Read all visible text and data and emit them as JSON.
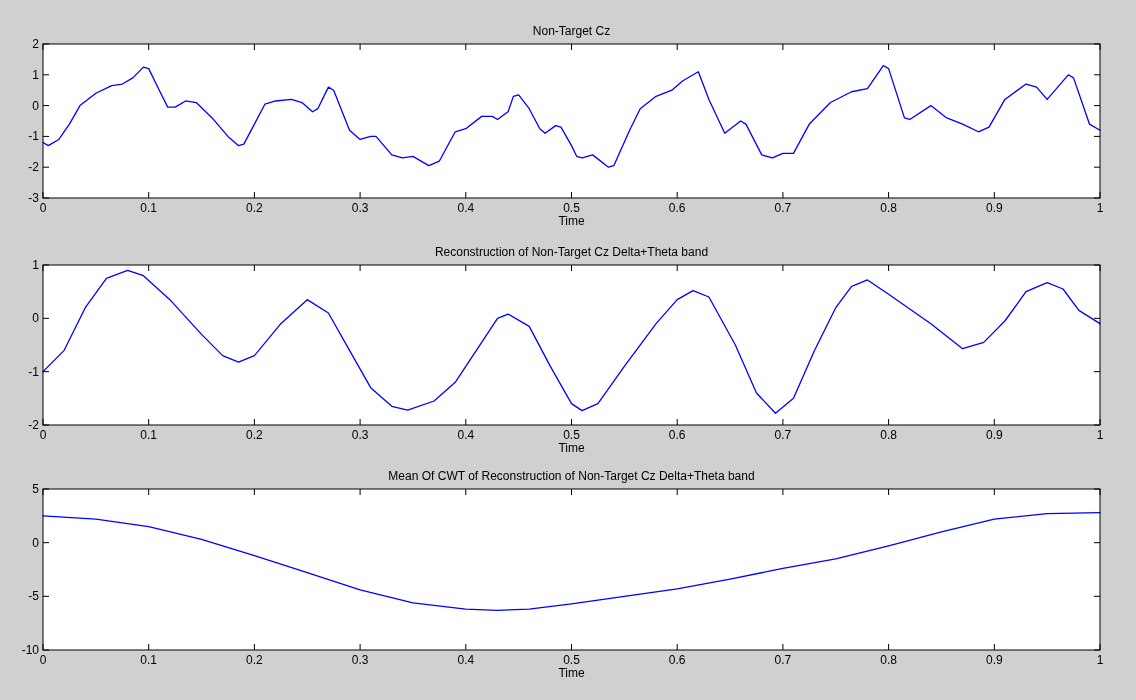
{
  "chart_data": [
    {
      "type": "line",
      "title": "Non-Target Cz",
      "xlabel": "Time",
      "xlim": [
        0,
        1
      ],
      "xticks": [
        0,
        0.1,
        0.2,
        0.3,
        0.4,
        0.5,
        0.6,
        0.7,
        0.8,
        0.9,
        1
      ],
      "ylim": [
        -3,
        2
      ],
      "yticks": [
        -3,
        -2,
        -1,
        0,
        1,
        2
      ],
      "grid": false,
      "series": [
        {
          "color": "#0000ff",
          "x": [
            0,
            0.005,
            0.015,
            0.025,
            0.035,
            0.05,
            0.065,
            0.075,
            0.085,
            0.095,
            0.1,
            0.11,
            0.118,
            0.125,
            0.135,
            0.145,
            0.16,
            0.175,
            0.185,
            0.19,
            0.2,
            0.21,
            0.22,
            0.235,
            0.245,
            0.255,
            0.26,
            0.27,
            0.275,
            0.29,
            0.3,
            0.31,
            0.315,
            0.33,
            0.34,
            0.35,
            0.365,
            0.375,
            0.39,
            0.4,
            0.415,
            0.425,
            0.43,
            0.44,
            0.445,
            0.45,
            0.46,
            0.47,
            0.475,
            0.485,
            0.49,
            0.5,
            0.505,
            0.51,
            0.52,
            0.535,
            0.54,
            0.555,
            0.565,
            0.58,
            0.595,
            0.605,
            0.62,
            0.63,
            0.645,
            0.66,
            0.665,
            0.68,
            0.69,
            0.7,
            0.71,
            0.725,
            0.745,
            0.765,
            0.78,
            0.795,
            0.8,
            0.815,
            0.82,
            0.84,
            0.855,
            0.87,
            0.885,
            0.895,
            0.91,
            0.93,
            0.94,
            0.95,
            0.96,
            0.97,
            0.975,
            0.99,
            1
          ],
          "values": [
            -1.2,
            -1.3,
            -1.1,
            -0.6,
            0.0,
            0.4,
            0.65,
            0.7,
            0.9,
            1.25,
            1.2,
            0.5,
            -0.05,
            -0.05,
            0.15,
            0.1,
            -0.4,
            -1.0,
            -1.3,
            -1.25,
            -0.6,
            0.05,
            0.15,
            0.2,
            0.1,
            -0.2,
            -0.1,
            0.6,
            0.5,
            -0.8,
            -1.1,
            -1.0,
            -1.0,
            -1.6,
            -1.7,
            -1.65,
            -1.95,
            -1.8,
            -0.85,
            -0.75,
            -0.35,
            -0.35,
            -0.45,
            -0.2,
            0.3,
            0.35,
            -0.1,
            -0.75,
            -0.9,
            -0.65,
            -0.7,
            -1.3,
            -1.65,
            -1.7,
            -1.6,
            -2.0,
            -1.95,
            -0.8,
            -0.1,
            0.3,
            0.5,
            0.8,
            1.1,
            0.2,
            -0.9,
            -0.5,
            -0.6,
            -1.6,
            -1.7,
            -1.55,
            -1.55,
            -0.6,
            0.1,
            0.45,
            0.55,
            1.3,
            1.2,
            -0.4,
            -0.45,
            0.0,
            -0.4,
            -0.6,
            -0.85,
            -0.7,
            0.2,
            0.7,
            0.6,
            0.2,
            0.6,
            1.0,
            0.9,
            -0.6,
            -0.8
          ]
        }
      ]
    },
    {
      "type": "line",
      "title": "Reconstruction of Non-Target Cz Delta+Theta band",
      "xlabel": "Time",
      "xlim": [
        0,
        1
      ],
      "xticks": [
        0,
        0.1,
        0.2,
        0.3,
        0.4,
        0.5,
        0.6,
        0.7,
        0.8,
        0.9,
        1
      ],
      "ylim": [
        -2,
        1
      ],
      "yticks": [
        -2,
        -1,
        0,
        1
      ],
      "grid": false,
      "series": [
        {
          "color": "#0000ff",
          "x": [
            0,
            0.02,
            0.04,
            0.06,
            0.08,
            0.095,
            0.12,
            0.15,
            0.17,
            0.185,
            0.2,
            0.225,
            0.25,
            0.27,
            0.29,
            0.31,
            0.33,
            0.345,
            0.37,
            0.39,
            0.41,
            0.43,
            0.44,
            0.46,
            0.48,
            0.5,
            0.51,
            0.525,
            0.55,
            0.58,
            0.6,
            0.615,
            0.63,
            0.655,
            0.675,
            0.693,
            0.71,
            0.73,
            0.75,
            0.765,
            0.78,
            0.8,
            0.84,
            0.87,
            0.89,
            0.91,
            0.93,
            0.95,
            0.965,
            0.98,
            1
          ],
          "values": [
            -1.0,
            -0.6,
            0.2,
            0.75,
            0.9,
            0.8,
            0.35,
            -0.3,
            -0.7,
            -0.82,
            -0.7,
            -0.1,
            0.35,
            0.1,
            -0.6,
            -1.3,
            -1.65,
            -1.72,
            -1.55,
            -1.2,
            -0.6,
            0.0,
            0.08,
            -0.15,
            -0.9,
            -1.6,
            -1.73,
            -1.6,
            -0.9,
            -0.1,
            0.35,
            0.52,
            0.4,
            -0.5,
            -1.4,
            -1.78,
            -1.5,
            -0.6,
            0.2,
            0.6,
            0.72,
            0.45,
            -0.1,
            -0.57,
            -0.45,
            -0.05,
            0.5,
            0.67,
            0.55,
            0.15,
            -0.1
          ]
        }
      ]
    },
    {
      "type": "line",
      "title": "Mean Of CWT of Reconstruction of Non-Target Cz Delta+Theta band",
      "xlabel": "Time",
      "xlim": [
        0,
        1
      ],
      "xticks": [
        0,
        0.1,
        0.2,
        0.3,
        0.4,
        0.5,
        0.6,
        0.7,
        0.8,
        0.9,
        1
      ],
      "ylim": [
        -10,
        5
      ],
      "yticks": [
        -10,
        -5,
        0,
        5
      ],
      "grid": false,
      "series": [
        {
          "color": "#0000ff",
          "x": [
            0,
            0.05,
            0.1,
            0.15,
            0.2,
            0.25,
            0.3,
            0.35,
            0.4,
            0.43,
            0.46,
            0.5,
            0.55,
            0.6,
            0.65,
            0.7,
            0.75,
            0.8,
            0.85,
            0.9,
            0.95,
            1
          ],
          "values": [
            2.5,
            2.2,
            1.5,
            0.3,
            -1.2,
            -2.8,
            -4.4,
            -5.6,
            -6.2,
            -6.3,
            -6.2,
            -5.7,
            -5.0,
            -4.3,
            -3.4,
            -2.4,
            -1.5,
            -0.3,
            1.0,
            2.2,
            2.7,
            2.8
          ]
        }
      ]
    }
  ]
}
